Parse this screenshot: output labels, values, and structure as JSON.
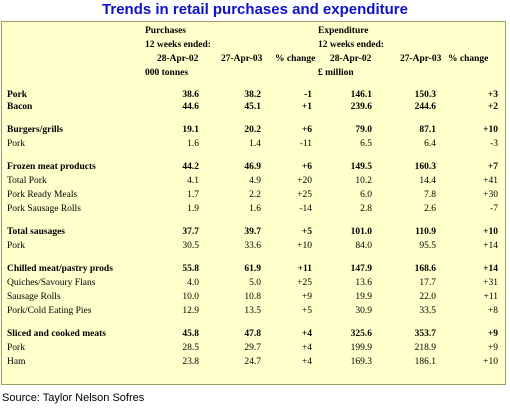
{
  "title": "Trends in retail purchases and expenditure",
  "source": "Source: Taylor Nelson Sofres",
  "header": {
    "purchases": "Purchases",
    "p_weeks": "12 weeks ended:",
    "p_col1": "28-Apr-02",
    "p_col2": "27-Apr-03",
    "p_change": "% change",
    "p_unit": "000 tonnes",
    "expenditure": "Expenditure",
    "e_weeks": "12 weeks ended:",
    "e_col1": "28-Apr-02",
    "e_col2": "27-Apr-03",
    "e_change": "% change",
    "e_unit": "£ million"
  },
  "rows": [
    {
      "label": "Pork",
      "bold": true,
      "p1": "38.6",
      "p2": "38.2",
      "pc": "-1",
      "e1": "146.1",
      "e2": "150.3",
      "ec": "+3"
    },
    {
      "label": "Bacon",
      "bold": true,
      "p1": "44.6",
      "p2": "45.1",
      "pc": "+1",
      "e1": "239.6",
      "e2": "244.6",
      "ec": "+2"
    },
    {
      "label": "Burgers/grills",
      "bold": true,
      "p1": "19.1",
      "p2": "20.2",
      "pc": "+6",
      "e1": "79.0",
      "e2": "87.1",
      "ec": "+10"
    },
    {
      "label": "Pork",
      "bold": false,
      "p1": "1.6",
      "p2": "1.4",
      "pc": "-11",
      "e1": "6.5",
      "e2": "6.4",
      "ec": "-3"
    },
    {
      "label": "Frozen meat products",
      "bold": true,
      "p1": "44.2",
      "p2": "46.9",
      "pc": "+6",
      "e1": "149.5",
      "e2": "160.3",
      "ec": "+7"
    },
    {
      "label": "Total Pork",
      "bold": false,
      "p1": "4.1",
      "p2": "4.9",
      "pc": "+20",
      "e1": "10.2",
      "e2": "14.4",
      "ec": "+41"
    },
    {
      "label": "Pork Ready Meals",
      "bold": false,
      "p1": "1.7",
      "p2": "2.2",
      "pc": "+25",
      "e1": "6.0",
      "e2": "7.8",
      "ec": "+30"
    },
    {
      "label": "Pork Sausage Rolls",
      "bold": false,
      "p1": "1.9",
      "p2": "1.6",
      "pc": "-14",
      "e1": "2.8",
      "e2": "2.6",
      "ec": "-7"
    },
    {
      "label": "Total sausages",
      "bold": true,
      "p1": "37.7",
      "p2": "39.7",
      "pc": "+5",
      "e1": "101.0",
      "e2": "110.9",
      "ec": "+10"
    },
    {
      "label": "Pork",
      "bold": false,
      "p1": "30.5",
      "p2": "33.6",
      "pc": "+10",
      "e1": "84.0",
      "e2": "95.5",
      "ec": "+14"
    },
    {
      "label": "Chilled meat/pastry prods",
      "bold": true,
      "p1": "55.8",
      "p2": "61.9",
      "pc": "+11",
      "e1": "147.9",
      "e2": "168.6",
      "ec": "+14"
    },
    {
      "label": "Quiches/Savoury Flans",
      "bold": false,
      "p1": "4.0",
      "p2": "5.0",
      "pc": "+25",
      "e1": "13.6",
      "e2": "17.7",
      "ec": "+31"
    },
    {
      "label": "Sausage Rolls",
      "bold": false,
      "p1": "10.0",
      "p2": "10.8",
      "pc": "+9",
      "e1": "19.9",
      "e2": "22.0",
      "ec": "+11"
    },
    {
      "label": "Pork/Cold Eating Pies",
      "bold": false,
      "p1": "12.9",
      "p2": "13.5",
      "pc": "+5",
      "e1": "30.9",
      "e2": "33.5",
      "ec": "+8"
    },
    {
      "label": "Sliced and cooked meats",
      "bold": true,
      "p1": "45.8",
      "p2": "47.8",
      "pc": "+4",
      "e1": "325.6",
      "e2": "353.7",
      "ec": "+9"
    },
    {
      "label": "Pork",
      "bold": false,
      "p1": "28.5",
      "p2": "29.7",
      "pc": "+4",
      "e1": "199.9",
      "e2": "218.9",
      "ec": "+9"
    },
    {
      "label": "Ham",
      "bold": false,
      "p1": "23.8",
      "p2": "24.7",
      "pc": "+4",
      "e1": "169.3",
      "e2": "186.1",
      "ec": "+10"
    }
  ]
}
